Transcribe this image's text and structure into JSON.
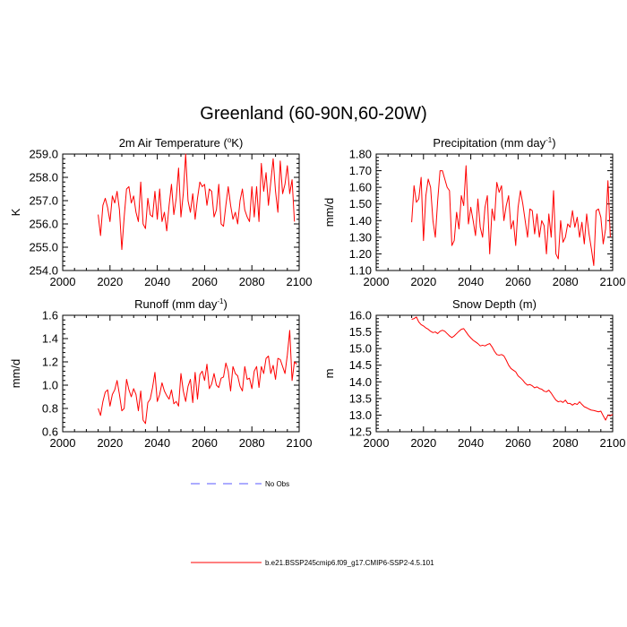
{
  "title": "Greenland (60-90N,60-20W)",
  "series_color": "#ff0000",
  "obs_color": "#5a5aff",
  "legend": [
    {
      "label": "No Obs",
      "style": "dashed",
      "color": "#5a5aff"
    },
    {
      "label": "b.e21.BSSP245cmip6.f09_g17.CMIP6-SSP2-4.5.101",
      "style": "solid",
      "color": "#ff0000"
    }
  ],
  "chart_data": [
    {
      "type": "line",
      "title": "2m Air Temperature (",
      "title_sup": "o",
      "title_end": "K)",
      "xlabel": "",
      "ylabel": "K",
      "xlim": [
        2000,
        2100
      ],
      "ylim": [
        254.0,
        259.0
      ],
      "xticks": [
        2000,
        2020,
        2040,
        2060,
        2080,
        2100
      ],
      "yticks": [
        "254.0",
        "255.0",
        "256.0",
        "257.0",
        "258.0",
        "259.0"
      ],
      "series": [
        {
          "name": "b.e21.BSSP245cmip6.f09_g17.CMIP6-SSP2-4.5.101",
          "x_start": 2015,
          "values": [
            256.4,
            255.5,
            256.8,
            257.1,
            256.7,
            256.1,
            257.2,
            256.9,
            257.4,
            256.6,
            254.9,
            256.3,
            257.5,
            257.6,
            256.9,
            257.2,
            256.5,
            256.1,
            257.8,
            256.0,
            255.8,
            257.1,
            256.4,
            256.3,
            257.4,
            256.2,
            257.5,
            256.1,
            256.5,
            255.7,
            256.8,
            257.7,
            256.4,
            257.1,
            258.4,
            256.3,
            257.3,
            259.0,
            257.0,
            256.5,
            257.3,
            256.2,
            257.1,
            257.8,
            257.6,
            257.7,
            256.8,
            257.5,
            257.4,
            256.3,
            256.6,
            257.7,
            256.0,
            255.9,
            256.8,
            257.6,
            256.8,
            256.2,
            256.5,
            256.0,
            257.0,
            257.5,
            256.6,
            256.3,
            256.1,
            257.6,
            256.3,
            257.6,
            256.1,
            258.6,
            257.4,
            258.2,
            256.8,
            257.8,
            258.8,
            257.4,
            256.5,
            258.7,
            257.3,
            257.7,
            258.5,
            257.3,
            257.9,
            256.1
          ]
        }
      ]
    },
    {
      "type": "line",
      "title": "Precipitation (mm day",
      "title_sup": "-1",
      "title_end": ")",
      "xlabel": "",
      "ylabel": "mm/d",
      "xlim": [
        2000,
        2100
      ],
      "ylim": [
        1.1,
        1.8
      ],
      "xticks": [
        2000,
        2020,
        2040,
        2060,
        2080,
        2100
      ],
      "yticks": [
        "1.10",
        "1.20",
        "1.30",
        "1.40",
        "1.50",
        "1.60",
        "1.70",
        "1.80"
      ],
      "series": [
        {
          "name": "b.e21.BSSP245cmip6.f09_g17.CMIP6-SSP2-4.5.101",
          "x_start": 2015,
          "values": [
            1.39,
            1.61,
            1.51,
            1.53,
            1.66,
            1.28,
            1.55,
            1.65,
            1.6,
            1.4,
            1.3,
            1.52,
            1.7,
            1.7,
            1.65,
            1.6,
            1.58,
            1.25,
            1.28,
            1.45,
            1.35,
            1.55,
            1.49,
            1.73,
            1.38,
            1.48,
            1.4,
            1.31,
            1.53,
            1.36,
            1.3,
            1.48,
            1.55,
            1.2,
            1.47,
            1.4,
            1.63,
            1.57,
            1.61,
            1.4,
            1.49,
            1.55,
            1.35,
            1.4,
            1.25,
            1.48,
            1.58,
            1.5,
            1.4,
            1.3,
            1.47,
            1.46,
            1.32,
            1.44,
            1.3,
            1.4,
            1.37,
            1.2,
            1.44,
            1.3,
            1.58,
            1.2,
            1.17,
            1.4,
            1.27,
            1.3,
            1.38,
            1.36,
            1.46,
            1.36,
            1.42,
            1.3,
            1.39,
            1.26,
            1.44,
            1.32,
            1.23,
            1.13,
            1.46,
            1.47,
            1.42,
            1.26,
            1.35,
            1.64,
            1.3
          ]
        }
      ]
    },
    {
      "type": "line",
      "title": "Runoff (mm day",
      "title_sup": "-1",
      "title_end": ")",
      "xlabel": "",
      "ylabel": "mm/d",
      "xlim": [
        2000,
        2100
      ],
      "ylim": [
        0.6,
        1.6
      ],
      "xticks": [
        2000,
        2020,
        2040,
        2060,
        2080,
        2100
      ],
      "yticks": [
        "0.6",
        "0.8",
        "1.0",
        "1.2",
        "1.4",
        "1.6"
      ],
      "series": [
        {
          "name": "b.e21.BSSP245cmip6.f09_g17.CMIP6-SSP2-4.5.101",
          "x_start": 2015,
          "values": [
            0.8,
            0.74,
            0.86,
            0.94,
            0.96,
            0.82,
            0.92,
            0.96,
            1.04,
            0.92,
            0.78,
            0.8,
            1.05,
            0.96,
            0.9,
            0.97,
            0.92,
            0.78,
            0.95,
            0.7,
            0.67,
            0.85,
            0.88,
            0.98,
            1.11,
            0.86,
            0.92,
            1.02,
            0.95,
            0.91,
            0.88,
            0.96,
            0.84,
            0.86,
            0.82,
            1.1,
            0.95,
            0.86,
            0.99,
            1.05,
            0.85,
            1.11,
            0.88,
            1.09,
            1.12,
            1.04,
            1.18,
            0.97,
            1.01,
            1.1,
            1.0,
            0.98,
            1.06,
            1.07,
            1.19,
            1.12,
            0.95,
            1.16,
            1.1,
            1.08,
            0.99,
            0.95,
            1.16,
            1.05,
            1.06,
            0.97,
            1.12,
            1.16,
            0.98,
            1.16,
            1.1,
            1.23,
            1.25,
            1.1,
            1.17,
            1.05,
            1.23,
            1.22,
            1.16,
            1.1,
            1.26,
            1.47,
            1.04,
            1.2,
            1.18
          ]
        }
      ]
    },
    {
      "type": "line",
      "title": "Snow Depth (m)",
      "title_sup": "",
      "title_end": "",
      "xlabel": "",
      "ylabel": "m",
      "xlim": [
        2000,
        2100
      ],
      "ylim": [
        12.5,
        16.0
      ],
      "xticks": [
        2000,
        2020,
        2040,
        2060,
        2080,
        2100
      ],
      "yticks": [
        "12.5",
        "13.0",
        "13.5",
        "14.0",
        "14.5",
        "15.0",
        "15.5",
        "16.0"
      ],
      "series": [
        {
          "name": "b.e21.BSSP245cmip6.f09_g17.CMIP6-SSP2-4.5.101",
          "x_start": 2015,
          "values": [
            15.88,
            15.9,
            15.95,
            15.8,
            15.72,
            15.68,
            15.62,
            15.58,
            15.52,
            15.48,
            15.5,
            15.45,
            15.52,
            15.55,
            15.52,
            15.45,
            15.38,
            15.33,
            15.38,
            15.45,
            15.52,
            15.58,
            15.6,
            15.5,
            15.4,
            15.32,
            15.25,
            15.2,
            15.15,
            15.08,
            15.1,
            15.08,
            15.12,
            15.15,
            15.05,
            14.92,
            14.82,
            14.8,
            14.82,
            14.78,
            14.65,
            14.5,
            14.4,
            14.35,
            14.3,
            14.18,
            14.12,
            14.05,
            13.96,
            13.9,
            13.92,
            13.88,
            13.82,
            13.85,
            13.8,
            13.78,
            13.72,
            13.7,
            13.75,
            13.66,
            13.55,
            13.45,
            13.4,
            13.42,
            13.38,
            13.45,
            13.35,
            13.35,
            13.3,
            13.35,
            13.32,
            13.4,
            13.32,
            13.25,
            13.22,
            13.18,
            13.15,
            13.14,
            13.12,
            13.1,
            13.12,
            12.98,
            12.85,
            13.0,
            12.98,
            13.02
          ]
        }
      ]
    }
  ]
}
